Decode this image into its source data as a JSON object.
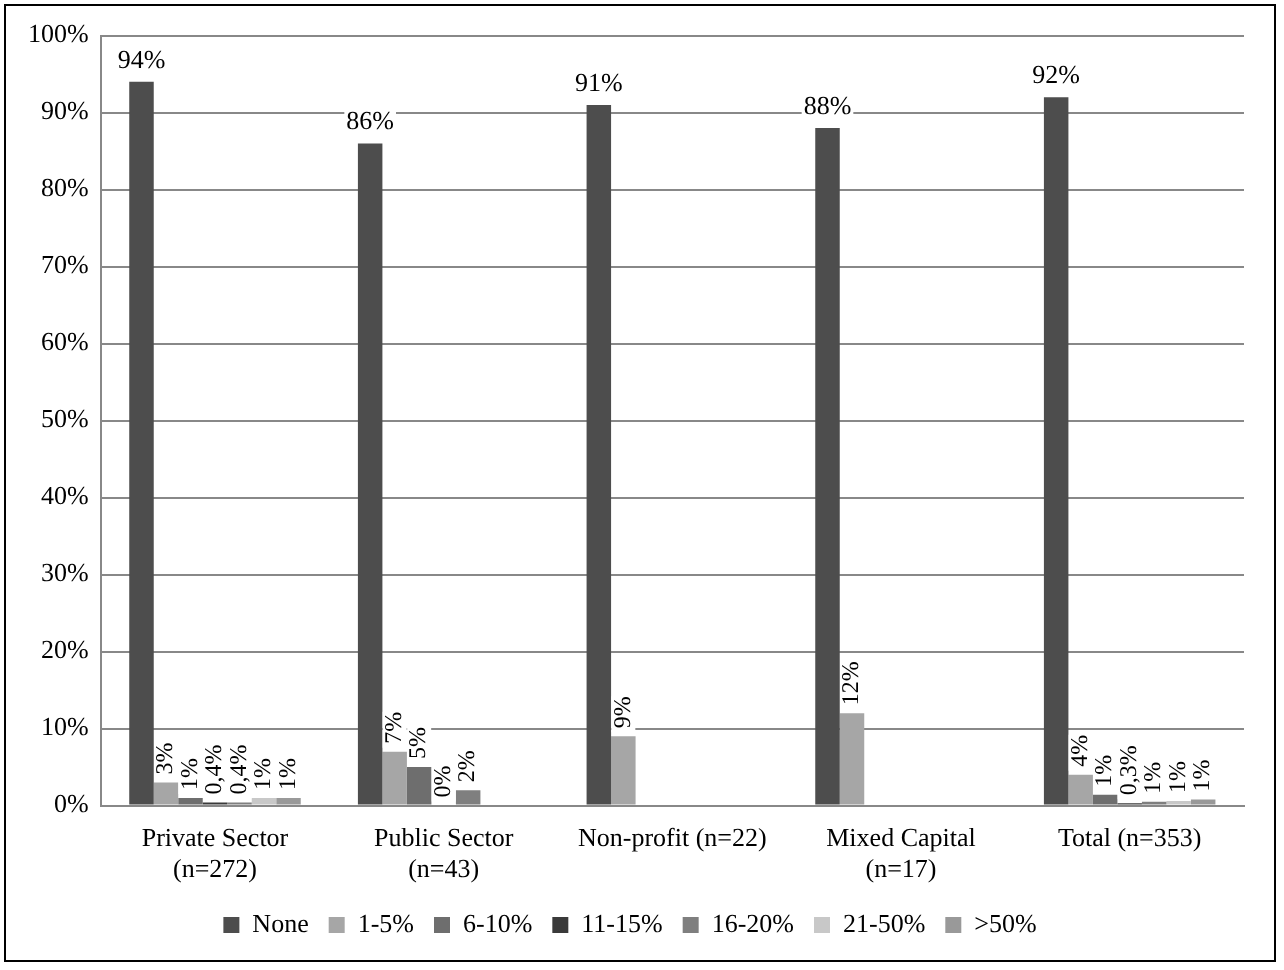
{
  "chart_data": {
    "type": "bar",
    "categories": [
      "Private Sector\n(n=272)",
      "Public Sector\n(n=43)",
      "Non-profit (n=22)",
      "Mixed Capital\n(n=17)",
      "Total (n=353)"
    ],
    "series": [
      {
        "name": "None",
        "color": "#4d4d4d",
        "values": [
          94,
          86,
          91,
          88,
          92
        ],
        "value_labels": [
          "94%",
          "86%",
          "91%",
          "88%",
          "92%"
        ]
      },
      {
        "name": "1-5%",
        "color": "#a6a6a6",
        "values": [
          3,
          7,
          9,
          12,
          4
        ],
        "value_labels": [
          "3%",
          "7%",
          "9%",
          "12%",
          "4%"
        ]
      },
      {
        "name": "6-10%",
        "color": "#6e6e6e",
        "values": [
          1,
          5,
          null,
          null,
          1.4
        ],
        "value_labels": [
          "1%",
          "5%",
          null,
          null,
          "1%"
        ]
      },
      {
        "name": "11-15%",
        "color": "#3a3a3a",
        "values": [
          0.4,
          0,
          null,
          null,
          0.3
        ],
        "value_labels": [
          "0,4%",
          "0%",
          null,
          null,
          "0,3%"
        ]
      },
      {
        "name": "16-20%",
        "color": "#7f7f7f",
        "values": [
          0.4,
          2,
          null,
          null,
          0.5
        ],
        "value_labels": [
          "0,4%",
          "2%",
          null,
          null,
          "1%"
        ]
      },
      {
        "name": "21-50%",
        "color": "#c8c8c8",
        "values": [
          1,
          null,
          null,
          null,
          0.6
        ],
        "value_labels": [
          "1%",
          null,
          null,
          null,
          "1%"
        ]
      },
      {
        "name": ">50%",
        "color": "#999999",
        "values": [
          1,
          null,
          null,
          null,
          0.8
        ],
        "value_labels": [
          "1%",
          null,
          null,
          null,
          "1%"
        ]
      }
    ],
    "ylim": [
      0,
      100
    ],
    "yticks": [
      {
        "value": 0,
        "label": "0%"
      },
      {
        "value": 10,
        "label": "10%"
      },
      {
        "value": 20,
        "label": "20%"
      },
      {
        "value": 30,
        "label": "30%"
      },
      {
        "value": 40,
        "label": "40%"
      },
      {
        "value": 50,
        "label": "50%"
      },
      {
        "value": 60,
        "label": "60%"
      },
      {
        "value": 70,
        "label": "70%"
      },
      {
        "value": 80,
        "label": "80%"
      },
      {
        "value": 90,
        "label": "90%"
      },
      {
        "value": 100,
        "label": "100%"
      }
    ],
    "grid": "y",
    "legend": "bottom"
  }
}
